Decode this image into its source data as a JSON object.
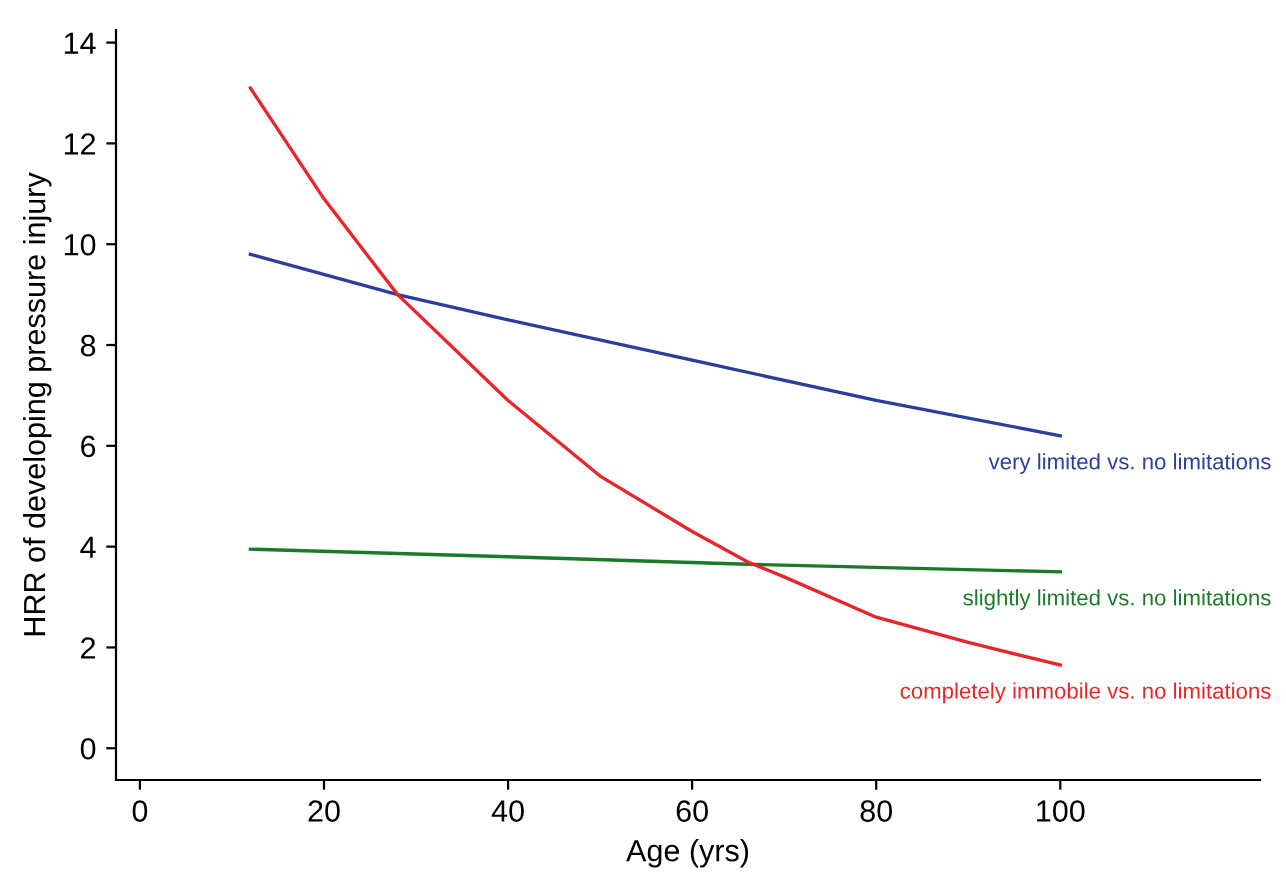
{
  "chart_data": {
    "type": "line",
    "xlabel": "Age (yrs)",
    "ylabel": "HRR of developing pressure injury",
    "xlim": [
      -2.6,
      121.7
    ],
    "ylim": [
      -0.63,
      14.25
    ],
    "xticks": [
      0,
      20,
      40,
      60,
      80,
      100
    ],
    "yticks": [
      0,
      2,
      4,
      6,
      8,
      10,
      12,
      14
    ],
    "grid": false,
    "legend": false,
    "marker": "none",
    "line_style": "solid",
    "series": [
      {
        "name": "very limited vs. no limitations",
        "color": "#2b3f9a",
        "x": [
          12,
          28,
          40,
          60,
          80,
          100
        ],
        "values": [
          9.8,
          9.0,
          8.5,
          7.7,
          6.9,
          6.2
        ]
      },
      {
        "name": "slightly limited vs. no limitations",
        "color": "#1a7a2a",
        "x": [
          12,
          40,
          66,
          100
        ],
        "values": [
          3.95,
          3.8,
          3.65,
          3.5
        ]
      },
      {
        "name": "completely immobile vs. no limitations",
        "color": "#e8262a",
        "x": [
          12,
          20,
          28,
          40,
          50,
          60,
          66,
          70,
          80,
          90,
          100
        ],
        "values": [
          13.1,
          10.9,
          9.0,
          6.9,
          5.4,
          4.3,
          3.7,
          3.4,
          2.6,
          2.1,
          1.65
        ]
      }
    ]
  }
}
